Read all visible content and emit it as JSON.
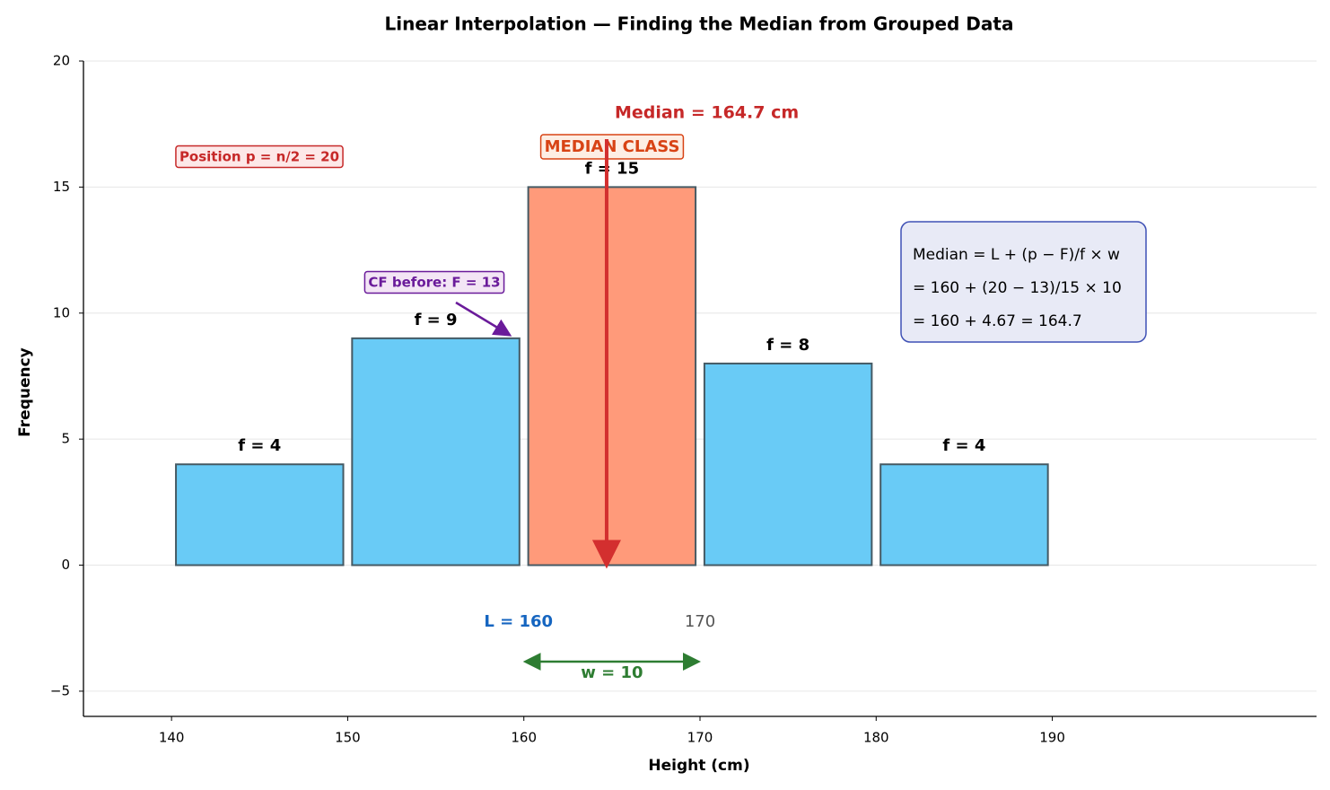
{
  "chart_data": {
    "type": "histogram",
    "title": "Linear Interpolation — Finding the Median from Grouped Data",
    "x_label": "Height (cm)",
    "y_label": "Frequency",
    "bins": [
      140,
      150,
      160,
      170,
      180,
      190
    ],
    "values": [
      4,
      9,
      15,
      8,
      4
    ],
    "value_labels": [
      "f = 4",
      "f = 9",
      "f = 15",
      "f = 8",
      "f = 4"
    ],
    "color": "#69cbf6",
    "highlight_index": 2,
    "highlight_color": "#ff9a7a",
    "edge_color": "#455a64",
    "xlim": [
      135,
      205
    ],
    "xticks": [
      140,
      150,
      160,
      170,
      180,
      190
    ],
    "ylim": [
      -6,
      20
    ],
    "yticks": [
      {
        "value": -5,
        "label": "−5"
      },
      0,
      5,
      10,
      15,
      20
    ],
    "grid": true,
    "median_line": {
      "value": 164.7,
      "label": "Median = 164.7 cm",
      "color": "#d32f2f"
    },
    "annotations": {
      "median_class": "MEDIAN CLASS",
      "position": "Position p = n/2 = 20",
      "cf_before": "CF before: F = 13",
      "lower_bound": "L = 160",
      "upper_bound": "170",
      "width": "w = 10",
      "formula": [
        "Median = L + (p − F)/f × w",
        "= 160 + (20 − 13)/15 × 10",
        "= 160 + 4.67 = 164.7"
      ]
    }
  }
}
